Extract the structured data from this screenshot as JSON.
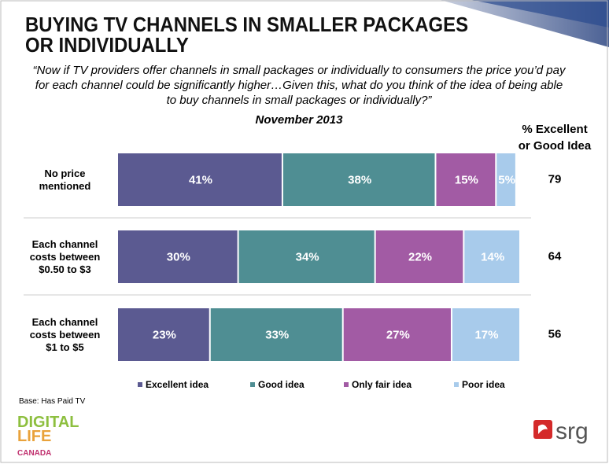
{
  "chart_data": {
    "type": "stacked_barh",
    "title": "BUYING TV CHANNELS IN SMALLER PACKAGES\nOR INDIVIDUALLY",
    "subtitle": "“Now if TV providers offer channels in small packages or individually to consumers the price you’d pay\nfor each channel could be significantly higher…Given this, what do you think of the idea of being able\nto buy channels in small packages or individually?”",
    "date": "November 2013",
    "categories": [
      "No price\nmentioned",
      "Each channel\ncosts between\n$0.50 to $3",
      "Each channel\ncosts between\n$1 to $5"
    ],
    "xlim": [
      0,
      100
    ],
    "series": [
      {
        "name": "Excellent idea",
        "color": "#5b5a91",
        "values": [
          41,
          30,
          23
        ],
        "value_labels": [
          "41%",
          "30%",
          "23%"
        ]
      },
      {
        "name": "Good idea",
        "color": "#4f8e93",
        "values": [
          38,
          34,
          33
        ],
        "value_labels": [
          "38%",
          "34%",
          "33%"
        ]
      },
      {
        "name": "Only fair idea",
        "color": "#a25ba4",
        "values": [
          15,
          22,
          27
        ],
        "value_labels": [
          "15%",
          "22%",
          "27%"
        ]
      },
      {
        "name": "Poor idea",
        "color": "#a8cbeb",
        "values": [
          5,
          14,
          17
        ],
        "value_labels": [
          "5%",
          "14%",
          "17%"
        ]
      }
    ],
    "summary": {
      "title": "% Excellent\nor Good Idea",
      "values": [
        79,
        64,
        56
      ]
    },
    "base": "Base: Has Paid TV",
    "logo_left": [
      "DIGITAL",
      "LIFE",
      "CANADA"
    ],
    "logo_right": "srg"
  }
}
